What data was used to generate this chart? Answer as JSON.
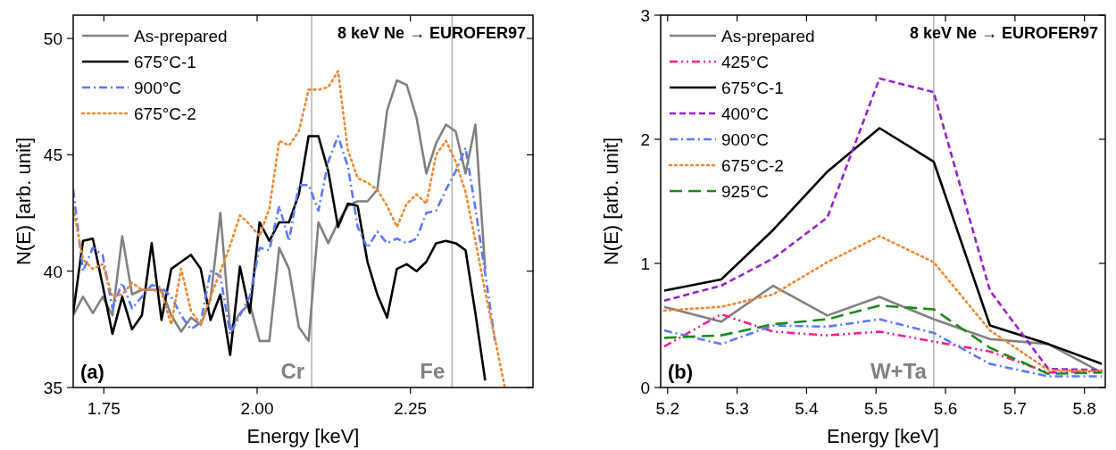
{
  "chart_data": [
    {
      "type": "line",
      "xlabel": "Energy [keV]",
      "ylabel": "N(E) [arb. unit]",
      "x": [
        1.7,
        1.716,
        1.732,
        1.748,
        1.764,
        1.78,
        1.796,
        1.812,
        1.828,
        1.844,
        1.86,
        1.876,
        1.892,
        1.908,
        1.924,
        1.94,
        1.956,
        1.972,
        1.988,
        2.004,
        2.02,
        2.036,
        2.052,
        2.068,
        2.084,
        2.1,
        2.116,
        2.132,
        2.148,
        2.164,
        2.18,
        2.196,
        2.212,
        2.228,
        2.244,
        2.26,
        2.276,
        2.292,
        2.308,
        2.324,
        2.34,
        2.356,
        2.372,
        2.388,
        2.404
      ],
      "xlim": [
        1.7,
        2.45
      ],
      "xticks": [
        1.75,
        {
          "value": 2,
          "label": "2.00"
        },
        2.25
      ],
      "ylim": [
        35,
        51
      ],
      "yticks": [
        35,
        40,
        45,
        50
      ],
      "legend": "top left",
      "grid": false,
      "series": [
        {
          "name": "As-prepared",
          "color": "#808080",
          "line_style": "solid",
          "values": [
            38.1,
            38.9,
            38.2,
            38.9,
            38.1,
            41.5,
            39.0,
            39.2,
            39.2,
            39.2,
            38.1,
            37.4,
            38.0,
            37.7,
            38.8,
            42.5,
            37.5,
            38.2,
            38.6,
            37.0,
            37.0,
            41.0,
            40.1,
            37.6,
            37.0,
            42.1,
            41.2,
            42.1,
            42.8,
            43.0,
            43.0,
            43.5,
            46.9,
            48.2,
            48.0,
            46.6,
            44.2,
            45.5,
            46.3,
            46.0,
            44.2,
            46.3,
            40.1,
            null,
            null
          ]
        },
        {
          "name": "675°C-1",
          "color": "#000000",
          "line_style": "solid",
          "values": [
            38.2,
            41.3,
            41.4,
            39.4,
            37.3,
            38.9,
            37.5,
            38.1,
            41.2,
            37.9,
            40.1,
            40.4,
            40.7,
            40.1,
            37.9,
            39.0,
            36.4,
            40.2,
            38.2,
            42.1,
            41.3,
            42.1,
            42.1,
            43.3,
            45.8,
            45.8,
            44.3,
            41.9,
            42.9,
            42.8,
            40.4,
            39.0,
            38.0,
            40.1,
            40.3,
            40.0,
            40.4,
            41.2,
            41.3,
            41.2,
            40.9,
            38.2,
            35.3,
            null,
            null
          ]
        },
        {
          "name": "900°C",
          "color": "#5a78ff",
          "line_style": "dashdot",
          "values": [
            43.5,
            40.0,
            41.0,
            40.7,
            38.4,
            39.5,
            38.4,
            38.9,
            39.4,
            39.3,
            38.9,
            38.1,
            37.5,
            37.8,
            40.0,
            39.8,
            37.3,
            38.1,
            38.9,
            41.0,
            40.9,
            42.8,
            41.3,
            43.7,
            43.7,
            42.6,
            44.7,
            45.8,
            44.5,
            41.9,
            41.0,
            41.7,
            41.2,
            41.4,
            41.2,
            41.4,
            42.5,
            42.6,
            43.5,
            44.3,
            45.3,
            42.7,
            39.9,
            37.0,
            null
          ]
        },
        {
          "name": "675°C-2",
          "color": "#f0882e",
          "line_style": "dotted",
          "values": [
            42.7,
            40.5,
            40.1,
            40.3,
            38.9,
            39.0,
            39.5,
            39.2,
            39.2,
            39.1,
            37.7,
            40.1,
            38.3,
            37.7,
            38.9,
            40.0,
            41.1,
            42.4,
            42.0,
            41.5,
            42.7,
            45.6,
            45.4,
            46.0,
            47.8,
            47.8,
            47.9,
            48.6,
            45.2,
            44.0,
            43.8,
            43.5,
            42.8,
            41.9,
            42.9,
            43.3,
            42.9,
            45.0,
            45.6,
            44.7,
            43.4,
            41.3,
            39.1,
            37.1,
            35.0
          ]
        }
      ],
      "ref_lines": [
        {
          "axis": "x",
          "value": 2.089,
          "label": "Cr",
          "color": "#b0b0b0"
        },
        {
          "axis": "x",
          "value": 2.318,
          "label": "Fe",
          "color": "#b0b0b0"
        }
      ],
      "annotations": [
        "(a)",
        "8 keV Ne → EUROFER97"
      ]
    },
    {
      "type": "line",
      "xlabel": "Energy [keV]",
      "ylabel": "N(E) [arb. unit]",
      "x": [
        5.195,
        5.277,
        5.352,
        5.43,
        5.505,
        5.583,
        5.664,
        5.748,
        5.825
      ],
      "xlim": [
        5.19,
        5.83
      ],
      "xticks": [
        5.2,
        5.3,
        5.4,
        5.5,
        5.6,
        5.7,
        5.8
      ],
      "ylim": [
        0,
        3
      ],
      "yticks": [
        0,
        1,
        2,
        3
      ],
      "legend": "top left",
      "grid": false,
      "series": [
        {
          "name": "As-prepared",
          "color": "#808080",
          "line_style": "solid",
          "values": [
            0.65,
            0.53,
            0.82,
            0.58,
            0.73,
            0.55,
            0.39,
            0.35,
            0.12
          ]
        },
        {
          "name": "425°C",
          "color": "#ff1a8c",
          "line_style": "dashdotdot",
          "values": [
            0.33,
            0.59,
            0.45,
            0.42,
            0.45,
            0.37,
            0.29,
            0.12,
            0.13
          ]
        },
        {
          "name": "675°C-1",
          "color": "#000000",
          "line_style": "solid",
          "values": [
            0.78,
            0.87,
            1.27,
            1.74,
            2.09,
            1.82,
            0.5,
            0.35,
            0.19
          ]
        },
        {
          "name": "400°C",
          "color": "#9b1fd0",
          "line_style": "dashed",
          "values": [
            0.7,
            0.82,
            1.04,
            1.37,
            2.49,
            2.38,
            0.78,
            0.15,
            0.14
          ]
        },
        {
          "name": "900°C",
          "color": "#5a78ff",
          "line_style": "dashdot",
          "values": [
            0.46,
            0.35,
            0.5,
            0.49,
            0.55,
            0.44,
            0.19,
            0.09,
            0.09
          ]
        },
        {
          "name": "675°C-2",
          "color": "#f0882e",
          "line_style": "dotted",
          "values": [
            0.62,
            0.65,
            0.75,
            1.01,
            1.22,
            1.01,
            0.46,
            0.14,
            0.13
          ]
        },
        {
          "name": "925°C",
          "color": "#1a8a1a",
          "line_style": "longdash",
          "values": [
            0.4,
            0.42,
            0.51,
            0.55,
            0.66,
            0.63,
            0.32,
            0.11,
            0.12
          ]
        }
      ],
      "ref_lines": [
        {
          "axis": "x",
          "value": 5.583,
          "label": "W+Ta",
          "color": "#b0b0b0"
        }
      ],
      "annotations": [
        "(b)",
        "8 keV Ne → EUROFER97"
      ]
    }
  ]
}
